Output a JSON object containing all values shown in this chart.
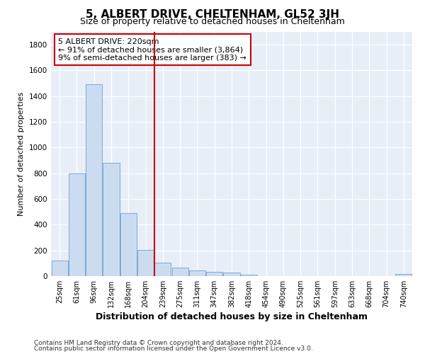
{
  "title": "5, ALBERT DRIVE, CHELTENHAM, GL52 3JH",
  "subtitle": "Size of property relative to detached houses in Cheltenham",
  "xlabel": "Distribution of detached houses by size in Cheltenham",
  "ylabel": "Number of detached properties",
  "footnote1": "Contains HM Land Registry data © Crown copyright and database right 2024.",
  "footnote2": "Contains public sector information licensed under the Open Government Licence v3.0.",
  "categories": [
    "25sqm",
    "61sqm",
    "96sqm",
    "132sqm",
    "168sqm",
    "204sqm",
    "239sqm",
    "275sqm",
    "311sqm",
    "347sqm",
    "382sqm",
    "418sqm",
    "454sqm",
    "490sqm",
    "525sqm",
    "561sqm",
    "597sqm",
    "633sqm",
    "668sqm",
    "704sqm",
    "740sqm"
  ],
  "values": [
    120,
    800,
    1490,
    880,
    490,
    205,
    105,
    65,
    42,
    35,
    28,
    12,
    0,
    0,
    0,
    0,
    0,
    0,
    0,
    0,
    17
  ],
  "bar_color": "#ccdcf0",
  "bar_edge_color": "#7aaad4",
  "vline_x": 5.5,
  "vline_color": "#cc0000",
  "ann_line1": "5 ALBERT DRIVE: 220sqm",
  "ann_line2": "← 91% of detached houses are smaller (3,864)",
  "ann_line3": "9% of semi-detached houses are larger (383) →",
  "annotation_box_edgecolor": "#cc0000",
  "ylim_max": 1900,
  "yticks": [
    0,
    200,
    400,
    600,
    800,
    1000,
    1200,
    1400,
    1600,
    1800
  ],
  "bg_color": "#ffffff",
  "plot_bg_color": "#e8eef8",
  "grid_color": "#ffffff",
  "title_fontsize": 11,
  "subtitle_fontsize": 9,
  "ylabel_fontsize": 8,
  "xlabel_fontsize": 9,
  "tick_fontsize": 7,
  "ann_fontsize": 8,
  "footnote_fontsize": 6.5
}
